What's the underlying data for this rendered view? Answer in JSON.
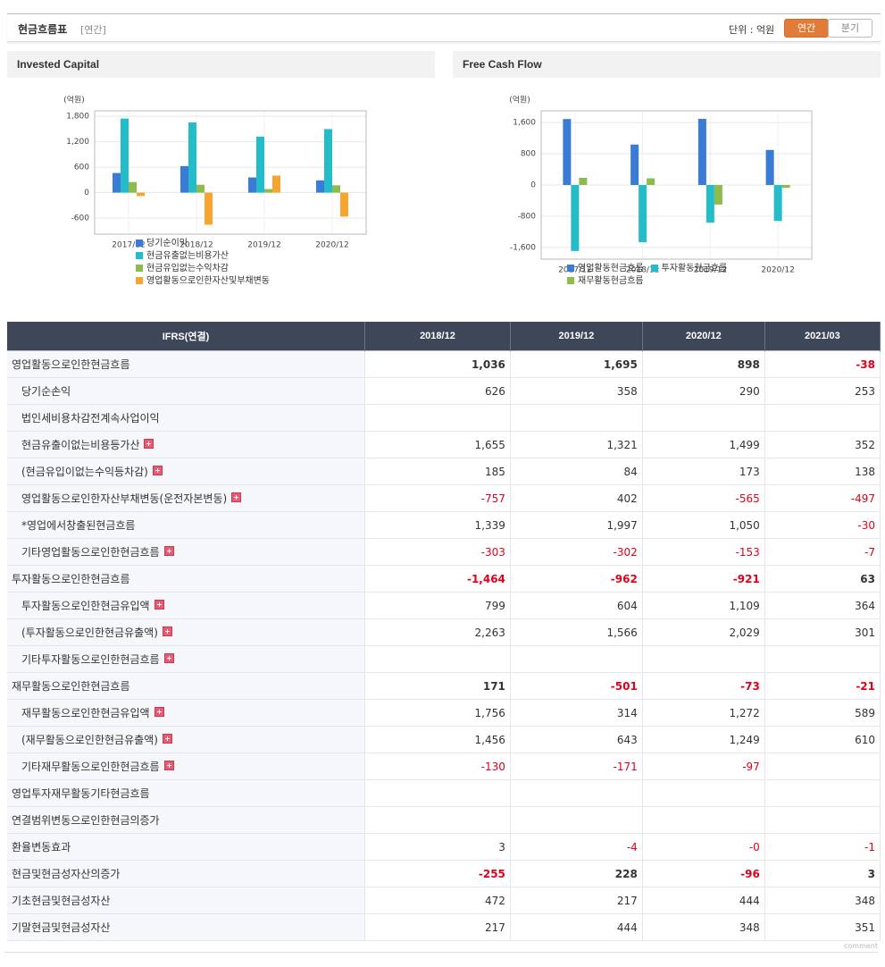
{
  "header": {
    "title": "현금흐름표",
    "period": "[연간]",
    "unit": "단위 : 억원",
    "buttons": [
      "연간",
      "분기"
    ]
  },
  "chart_data": [
    {
      "type": "bar",
      "title": "Invested Capital",
      "y_label": "(억원)",
      "categories": [
        "2017/12",
        "2018/12",
        "2019/12",
        "2020/12"
      ],
      "series": [
        {
          "name": "당기순이익",
          "color": "#3a7bd5",
          "values": [
            463,
            626,
            358,
            290
          ]
        },
        {
          "name": "현금유출없는비용가산",
          "color": "#25bcc9",
          "values": [
            1747,
            1655,
            1321,
            1499
          ]
        },
        {
          "name": "현금유입없는수익차감",
          "color": "#8dbb4c",
          "values": [
            250,
            185,
            84,
            173
          ]
        },
        {
          "name": "영업활동으로인한자산및부채변동",
          "color": "#f6a630",
          "values": [
            -80,
            -757,
            402,
            -565
          ]
        }
      ],
      "ylim": [
        -980,
        1930
      ],
      "yticks": [
        -600,
        0,
        600,
        {
          "value": 1200,
          "label": "1,200"
        },
        {
          "value": 1800,
          "label": "1,800"
        }
      ],
      "grid": true
    },
    {
      "type": "bar",
      "title": "Free Cash Flow",
      "y_label": "(억원)",
      "categories": [
        "2017/12",
        "2018/12",
        "2019/12",
        "2020/12"
      ],
      "series": [
        {
          "name": "영업활동현금흐름",
          "color": "#3a7bd5",
          "values": [
            1690,
            1036,
            1695,
            898
          ]
        },
        {
          "name": "투자활동현금흐름",
          "color": "#25bcc9",
          "values": [
            -1690,
            -1464,
            -962,
            -921
          ]
        },
        {
          "name": "재무활동현금흐름",
          "color": "#8dbb4c",
          "values": [
            183,
            171,
            -501,
            -73
          ]
        }
      ],
      "ylim": [
        -1900,
        1900
      ],
      "yticks": [
        {
          "value": -1600,
          "label": "-1,600"
        },
        -800,
        0,
        800,
        {
          "value": 1600,
          "label": "1,600"
        }
      ],
      "grid": true
    }
  ],
  "table": {
    "columns": [
      "IFRS(연결)",
      "2018/12",
      "2019/12",
      "2020/12",
      "2021/03"
    ],
    "rows": [
      {
        "label": "영업활동으로인한현금흐름",
        "bold": true,
        "cells": [
          "1,036",
          "1,695",
          "898",
          "-38"
        ]
      },
      {
        "label": "당기순손익",
        "indent": true,
        "cells": [
          "626",
          "358",
          "290",
          "253"
        ]
      },
      {
        "label": "법인세비용차감전계속사업이익",
        "indent": true,
        "cells": [
          null,
          null,
          null,
          null
        ]
      },
      {
        "label": "현금유출이없는비용등가산",
        "indent": true,
        "expandable": true,
        "cells": [
          "1,655",
          "1,321",
          "1,499",
          "352"
        ]
      },
      {
        "label": "(현금유입이없는수익등차감)",
        "indent": true,
        "expandable": true,
        "cells": [
          "185",
          "84",
          "173",
          "138"
        ]
      },
      {
        "label": "영업활동으로인한자산부채변동(운전자본변동)",
        "indent": true,
        "expandable": true,
        "cells": [
          "-757",
          "402",
          "-565",
          "-497"
        ]
      },
      {
        "label": "*영업에서창출된현금흐름",
        "indent": true,
        "cells": [
          "1,339",
          "1,997",
          "1,050",
          "-30"
        ]
      },
      {
        "label": "기타영업활동으로인한현금흐름",
        "indent": true,
        "expandable": true,
        "cells": [
          "-303",
          "-302",
          "-153",
          "-7"
        ]
      },
      {
        "label": "투자활동으로인한현금흐름",
        "bold": true,
        "cells": [
          "-1,464",
          "-962",
          "-921",
          "63"
        ]
      },
      {
        "label": "투자활동으로인한현금유입액",
        "indent": true,
        "expandable": true,
        "cells": [
          "799",
          "604",
          "1,109",
          "364"
        ]
      },
      {
        "label": "(투자활동으로인한현금유출액)",
        "indent": true,
        "expandable": true,
        "cells": [
          "2,263",
          "1,566",
          "2,029",
          "301"
        ]
      },
      {
        "label": "기타투자활동으로인한현금흐름",
        "indent": true,
        "expandable": true,
        "cells": [
          null,
          null,
          null,
          null
        ]
      },
      {
        "label": "재무활동으로인한현금흐름",
        "bold": true,
        "cells": [
          "171",
          "-501",
          "-73",
          "-21"
        ]
      },
      {
        "label": "재무활동으로인한현금유입액",
        "indent": true,
        "expandable": true,
        "cells": [
          "1,756",
          "314",
          "1,272",
          "589"
        ]
      },
      {
        "label": "(재무활동으로인한현금유출액)",
        "indent": true,
        "expandable": true,
        "cells": [
          "1,456",
          "643",
          "1,249",
          "610"
        ]
      },
      {
        "label": "기타재무활동으로인한현금흐름",
        "indent": true,
        "expandable": true,
        "cells": [
          "-130",
          "-171",
          "-97",
          null
        ]
      },
      {
        "label": "영업투자재무활동기타현금흐름",
        "cells": [
          null,
          null,
          null,
          null
        ]
      },
      {
        "label": "연결범위변동으로인한현금의증가",
        "cells": [
          null,
          null,
          null,
          null
        ]
      },
      {
        "label": "환율변동효과",
        "cells": [
          "3",
          "-4",
          "-0",
          "-1"
        ]
      },
      {
        "label": "현금및현금성자산의증가",
        "bold": true,
        "cells": [
          "-255",
          "228",
          "-96",
          "3"
        ]
      },
      {
        "label": "기초현금및현금성자산",
        "cells": [
          "472",
          "217",
          "444",
          "348"
        ]
      },
      {
        "label": "기말현금및현금성자산",
        "cells": [
          "217",
          "444",
          "348",
          "351"
        ]
      }
    ]
  },
  "footer": "comment"
}
